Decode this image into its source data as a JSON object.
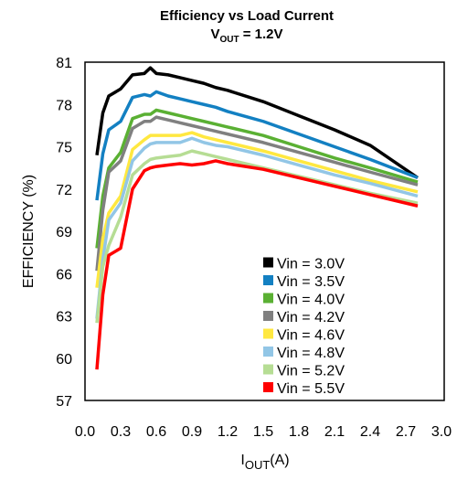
{
  "chart_data": {
    "type": "line",
    "title": "Efficiency vs Load Current",
    "subtitle_parts": [
      "V",
      "OUT",
      " = 1.2V"
    ],
    "x_label_parts": [
      "I",
      "OUT",
      "(A)"
    ],
    "y_label": "EFFICIENCY (%)",
    "xlim": [
      0,
      3.0
    ],
    "ylim": [
      57,
      81
    ],
    "xticks": [
      {
        "value": 0,
        "label": "0.0"
      },
      0.3,
      0.6,
      0.9,
      1.2,
      1.5,
      1.8,
      2.1,
      2.4,
      2.7,
      {
        "value": 3,
        "label": "3.0"
      }
    ],
    "yticks": [
      57,
      60,
      63,
      66,
      69,
      72,
      75,
      78,
      81
    ],
    "grid": false,
    "legend": "lower right",
    "x": [
      0.1,
      0.15,
      0.2,
      0.3,
      0.4,
      0.5,
      0.55,
      0.6,
      0.7,
      0.8,
      0.9,
      1.0,
      1.1,
      1.2,
      1.5,
      1.8,
      2.1,
      2.4,
      2.8
    ],
    "series": [
      {
        "name": "Vin = 3.0V",
        "color": "#000000",
        "values": [
          74.4,
          77.4,
          78.6,
          79.1,
          80.1,
          80.2,
          80.6,
          80.2,
          80.1,
          79.9,
          79.7,
          79.5,
          79.2,
          79.0,
          78.2,
          77.2,
          76.2,
          75.1,
          72.8
        ]
      },
      {
        "name": "Vin = 3.5V",
        "color": "#1380c2",
        "values": [
          71.2,
          74.5,
          76.2,
          76.8,
          78.5,
          78.7,
          78.6,
          78.9,
          78.6,
          78.4,
          78.2,
          78.0,
          77.8,
          77.5,
          76.8,
          75.9,
          75.0,
          74.1,
          72.8
        ]
      },
      {
        "name": "Vin = 4.0V",
        "color": "#5ab033",
        "values": [
          67.8,
          71.5,
          73.5,
          74.6,
          77.0,
          77.3,
          77.3,
          77.6,
          77.4,
          77.2,
          77.0,
          76.8,
          76.6,
          76.4,
          75.8,
          75.0,
          74.2,
          73.5,
          72.5
        ]
      },
      {
        "name": "Vin = 4.2V",
        "color": "#808080",
        "values": [
          66.2,
          70.5,
          73.2,
          74.0,
          76.3,
          76.8,
          76.8,
          77.1,
          76.9,
          76.7,
          76.5,
          76.3,
          76.1,
          75.9,
          75.3,
          74.6,
          73.9,
          73.2,
          72.3
        ]
      },
      {
        "name": "Vin = 4.6V",
        "color": "#ffe840",
        "values": [
          65.0,
          68.5,
          70.3,
          71.5,
          74.8,
          75.5,
          75.8,
          75.8,
          75.8,
          75.8,
          76.0,
          75.7,
          75.5,
          75.3,
          74.7,
          74.0,
          73.3,
          72.6,
          71.8
        ]
      },
      {
        "name": "Vin = 4.8V",
        "color": "#92c6e6",
        "values": [
          62.8,
          67.0,
          69.8,
          71.0,
          74.0,
          74.9,
          75.2,
          75.3,
          75.3,
          75.3,
          75.6,
          75.3,
          75.1,
          75.0,
          74.4,
          73.7,
          73.0,
          72.4,
          71.5
        ]
      },
      {
        "name": "Vin = 5.2V",
        "color": "#b6dd94",
        "values": [
          62.5,
          66.5,
          68.0,
          70.0,
          73.0,
          73.8,
          74.1,
          74.2,
          74.3,
          74.4,
          74.7,
          74.5,
          74.3,
          74.1,
          73.5,
          72.9,
          72.3,
          71.7,
          71.0
        ]
      },
      {
        "name": "Vin = 5.5V",
        "color": "#ff0000",
        "values": [
          59.2,
          64.5,
          67.3,
          67.8,
          72.0,
          73.3,
          73.5,
          73.6,
          73.7,
          73.8,
          73.7,
          73.8,
          74.0,
          73.8,
          73.4,
          72.8,
          72.2,
          71.6,
          70.8
        ]
      }
    ]
  }
}
